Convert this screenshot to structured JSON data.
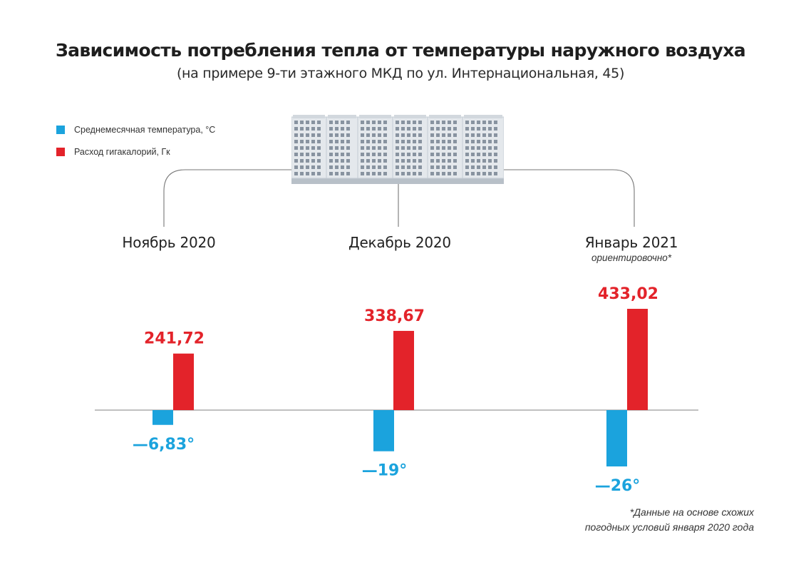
{
  "title": "Зависимость потребления тепла от температуры наружного воздуха",
  "subtitle": "(на примере 9-ти этажного МКД по ул. Интернациональная, 45)",
  "legend": [
    {
      "label": "Среднемесячная температура, °С",
      "color": "#1ba3dd"
    },
    {
      "label": "Расход гигакалорий, Гк",
      "color": "#e3232a"
    }
  ],
  "months": [
    {
      "label": "Ноябрь 2020",
      "note": ""
    },
    {
      "label": "Декабрь 2020",
      "note": ""
    },
    {
      "label": "Январь 2021",
      "note": "ориентировочно*"
    }
  ],
  "footnote": {
    "line1": "*Данные на основе схожих",
    "line2": "погодных условий января 2020 года"
  },
  "colors": {
    "temperature": "#1ba3dd",
    "heat": "#e3232a",
    "axis": "#9a9a9a",
    "building": "#e4e8ec"
  },
  "icons": {
    "building": "apartment-building-icon"
  },
  "chart_data": {
    "type": "bar",
    "categories": [
      "Ноябрь 2020",
      "Декабрь 2020",
      "Январь 2021"
    ],
    "series": [
      {
        "name": "Среднемесячная температура, °С",
        "values": [
          -6.83,
          -19,
          -26
        ],
        "labels": [
          "—6,83°",
          "—19°",
          "—26°"
        ],
        "color": "#1ba3dd"
      },
      {
        "name": "Расход гигакалорий, Гк",
        "values": [
          241.72,
          338.67,
          433.02
        ],
        "labels": [
          "241,72",
          "338,67",
          "433,02"
        ],
        "color": "#e3232a"
      }
    ]
  }
}
